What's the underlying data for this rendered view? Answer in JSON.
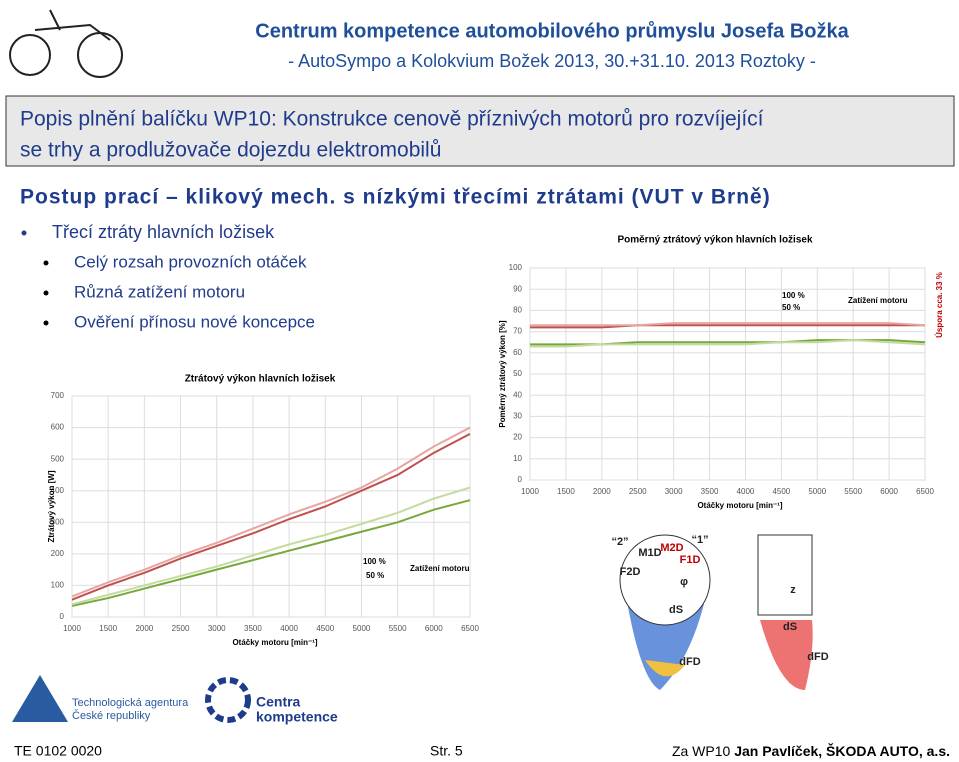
{
  "header": {
    "title": "Centrum kompetence automobilového průmyslu Josefa Božka",
    "subtitle": "- AutoSympo a Kolokvium Božek 2013, 30.+31.10. 2013 Roztoky -"
  },
  "banner": {
    "lines": [
      "Popis plnění balíčku WP10: Konstrukce cenově příznivých motorů pro rozvíjející",
      "se trhy a prodlužovače dojezdu elektromobilů"
    ]
  },
  "heading": "Postup prací – klikový mech. s nízkými třecími ztrátami (VUT v Brně)",
  "bullets": {
    "main": "Třecí ztráty hlavních ložisek",
    "sub": [
      "Celý rozsah provozních otáček",
      "Různá zatížení motoru",
      "Ověření přínosu nové koncepce"
    ]
  },
  "chart_data": [
    {
      "type": "line",
      "title": "Ztrátový výkon hlavních ložisek",
      "xlabel": "Otáčky motoru [min⁻¹]",
      "ylabel": "Ztrátový výkon [W]",
      "x": [
        1000,
        1500,
        2000,
        2500,
        3000,
        3500,
        4000,
        4500,
        5000,
        5500,
        6000,
        6500
      ],
      "series": [
        {
          "color": "#c0504d",
          "values": [
            55,
            100,
            140,
            185,
            225,
            265,
            310,
            350,
            400,
            450,
            520,
            580
          ]
        },
        {
          "color": "#e6a5a3",
          "values": [
            65,
            110,
            150,
            195,
            235,
            280,
            325,
            365,
            410,
            470,
            540,
            600
          ]
        },
        {
          "color": "#77a83c",
          "values": [
            35,
            60,
            90,
            120,
            150,
            180,
            210,
            240,
            270,
            300,
            340,
            370
          ]
        },
        {
          "color": "#c4dba0",
          "values": [
            40,
            70,
            100,
            130,
            160,
            195,
            230,
            260,
            295,
            330,
            375,
            410
          ]
        }
      ],
      "xlim": [
        1000,
        6500
      ],
      "xticks": [
        1000,
        1500,
        2000,
        2500,
        3000,
        3500,
        4000,
        4500,
        5000,
        5500,
        6000,
        6500
      ],
      "ylim": [
        0,
        700
      ],
      "yticks": [
        0,
        100,
        200,
        300,
        400,
        500,
        600,
        700
      ],
      "grid": true,
      "annotations": [
        "100 %",
        "50 %",
        "Zatížení motoru"
      ]
    },
    {
      "type": "line",
      "title": "Poměrný ztrátový výkon hlavních ložisek",
      "xlabel": "Otáčky motoru [min⁻¹]",
      "ylabel": "Poměrný ztrátový výkon [%]",
      "x": [
        1000,
        1500,
        2000,
        2500,
        3000,
        3500,
        4000,
        4500,
        5000,
        5500,
        6000,
        6500
      ],
      "series": [
        {
          "color": "#c0504d",
          "values": [
            72,
            72,
            72,
            73,
            73,
            73,
            73,
            73,
            73,
            73,
            73,
            73
          ]
        },
        {
          "color": "#e6a5a3",
          "values": [
            73,
            73,
            73,
            73,
            74,
            74,
            74,
            74,
            74,
            74,
            74,
            73
          ]
        },
        {
          "color": "#77a83c",
          "values": [
            64,
            64,
            64,
            65,
            65,
            65,
            65,
            65,
            66,
            66,
            66,
            65
          ]
        },
        {
          "color": "#c4dba0",
          "values": [
            63,
            63,
            64,
            64,
            64,
            64,
            64,
            65,
            65,
            66,
            65,
            64
          ]
        }
      ],
      "xlim": [
        1000,
        6500
      ],
      "xticks": [
        1000,
        1500,
        2000,
        2500,
        3000,
        3500,
        4000,
        4500,
        5000,
        5500,
        6000,
        6500
      ],
      "ylim": [
        0,
        100
      ],
      "yticks": [
        0,
        10,
        20,
        30,
        40,
        50,
        60,
        70,
        80,
        90,
        100
      ],
      "grid": true,
      "annotations": [
        "100 %",
        "50 %",
        "Zatížení motoru",
        "Úspora cca. 33 %"
      ]
    }
  ],
  "diagram": {
    "labels": [
      "“2”",
      "“1”",
      "M1D",
      "M2D",
      "F2D",
      "F1D",
      "φ",
      "dS",
      "dFD",
      "z",
      "dS",
      "dFD"
    ]
  },
  "logos": [
    "Technologická agentura",
    "České republiky",
    "Centra",
    "kompetence"
  ],
  "footer": {
    "left": "TE 0102 0020",
    "center": "Str. 5",
    "right_prefix": "Za WP10",
    "right": "Jan Pavlíček, ŠKODA AUTO, a.s."
  }
}
